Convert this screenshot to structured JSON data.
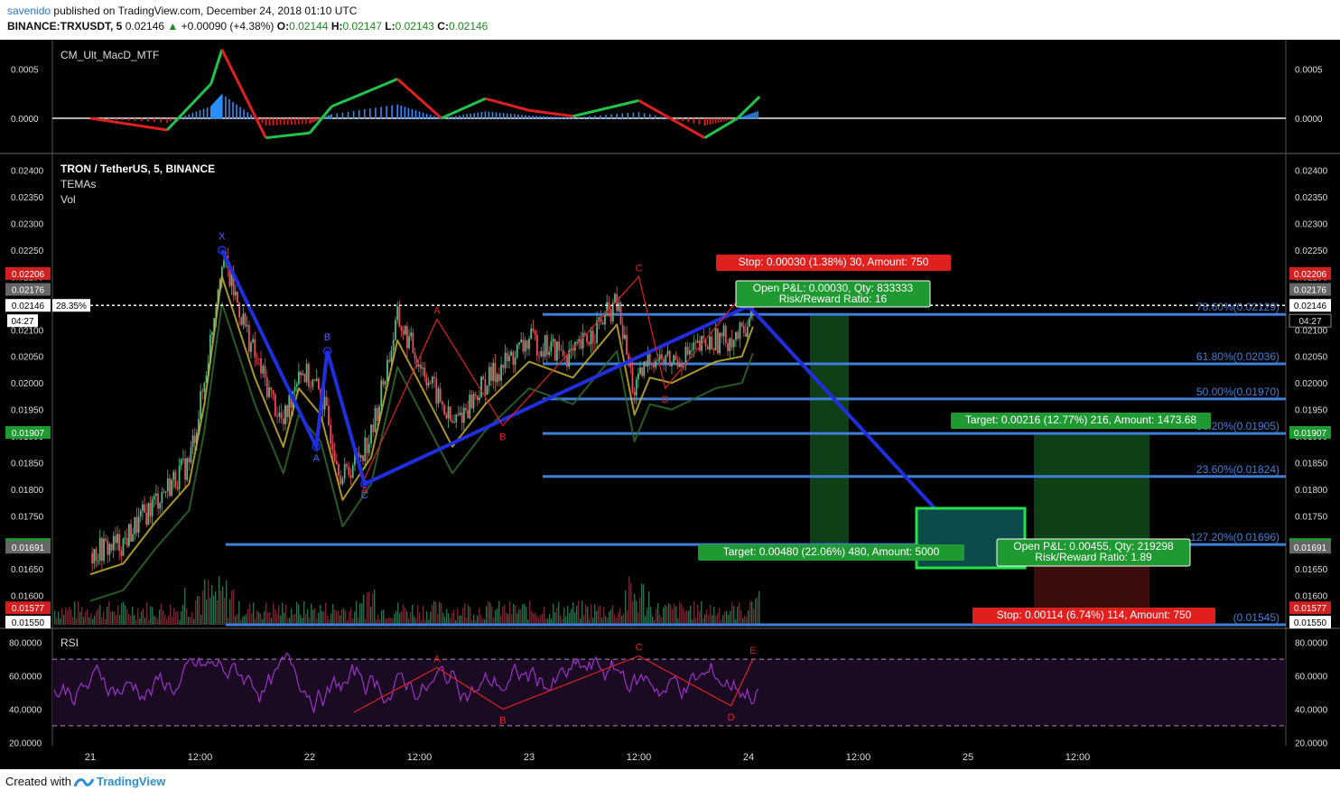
{
  "header": {
    "user": "savenido",
    "published": "published on TradingView.com, December 24, 2018 01:10 UTC",
    "symbol": "BINANCE:TRXUSDT, 5",
    "last": "0.02146",
    "change": "+0.00090 (+4.38%)",
    "o_label": "O:",
    "o": "0.02144",
    "h_label": "H:",
    "h": "0.02147",
    "l_label": "L:",
    "l": "0.02143",
    "c_label": "C:",
    "c": "0.02146"
  },
  "footer": {
    "created_with": "Created with",
    "brand": "TradingView"
  },
  "colors": {
    "background": "#000000",
    "candle_up": "#53b987",
    "candle_down": "#eb4d5c",
    "fib": "#3f7fd9",
    "pattern_blue": "#1f2fe0",
    "pattern_red": "#e02020",
    "rsi": "#9b30c8",
    "label_green": "#1f9a32",
    "label_red": "#e01f1f",
    "price_tag": "#d22020"
  },
  "chart_data": [
    {
      "type": "line",
      "panel": "macd",
      "title": "CM_Ult_MacD_MTF",
      "y_ticks": [
        "0.0005",
        "0.0000"
      ],
      "ylim": [
        -0.00035,
        0.0008
      ],
      "x_days": [
        0,
        0.35,
        0.55,
        0.6,
        0.8,
        1.0,
        1.1,
        1.4,
        1.6,
        1.8,
        2.0,
        2.2,
        2.5,
        2.8,
        2.95,
        3.05
      ],
      "values": [
        0.0,
        -0.00012,
        0.00035,
        0.0007,
        -0.0002,
        -0.00015,
        0.00012,
        0.0004,
        0.0,
        0.0002,
        8e-05,
        2e-05,
        0.00018,
        -0.0002,
        0.0,
        0.00022
      ]
    },
    {
      "type": "candlestick",
      "panel": "price",
      "title": "TRON / TetherUS, 5, BINANCE",
      "legend": [
        "TEMAs",
        "Vol"
      ],
      "x_labels": [
        "21",
        "12:00",
        "22",
        "12:00",
        "23",
        "12:00",
        "24",
        "12:00",
        "25",
        "12:00"
      ],
      "y_ticks": [
        "0.02400",
        "0.02350",
        "0.02300",
        "0.02250",
        "0.02200",
        "0.02150",
        "0.02100",
        "0.02050",
        "0.02000",
        "0.01950",
        "0.01900",
        "0.01850",
        "0.01800",
        "0.01750",
        "0.01700",
        "0.01650",
        "0.01600",
        "0.01550"
      ],
      "ylim": [
        0.0154,
        0.0243
      ],
      "price_path": {
        "x_days": [
          0,
          0.15,
          0.3,
          0.45,
          0.52,
          0.6,
          0.75,
          0.88,
          0.95,
          1.05,
          1.15,
          1.28,
          1.4,
          1.55,
          1.65,
          1.8,
          2.0,
          2.2,
          2.4,
          2.48,
          2.55,
          2.65,
          2.85,
          2.97,
          3.02
        ],
        "close": [
          0.0168,
          0.017,
          0.0178,
          0.0185,
          0.02,
          0.0224,
          0.0205,
          0.0192,
          0.0203,
          0.0198,
          0.0182,
          0.019,
          0.0212,
          0.02,
          0.0192,
          0.02,
          0.0208,
          0.0205,
          0.0215,
          0.0198,
          0.0205,
          0.0204,
          0.0208,
          0.0209,
          0.02146
        ]
      },
      "price_tags": [
        {
          "value": 0.02206,
          "label": "0.02206",
          "color": "#d22020"
        },
        {
          "value": 0.02176,
          "label": "0.02176",
          "color": "#666666"
        },
        {
          "value": 0.02146,
          "label": "0.02146",
          "color": "#ffffff",
          "text_color": "#000000"
        },
        {
          "value": 0.01907,
          "label": "0.01907",
          "color": "#1f9a32"
        },
        {
          "value": 0.01696,
          "label": "0.01696",
          "color": "#1f9a32"
        },
        {
          "value": 0.01691,
          "label": "0.01691",
          "color": "#666666"
        },
        {
          "value": 0.01577,
          "label": "0.01577",
          "color": "#d22020"
        },
        {
          "value": 0.0155,
          "label": "0.01550",
          "color": "#ffffff",
          "text_color": "#000000"
        }
      ],
      "left_markers": [
        {
          "value": 0.02146,
          "label": "28.35%"
        },
        {
          "value": 0.02125,
          "label": "04:27"
        }
      ],
      "right_countdown": "04:27",
      "fib_levels": [
        {
          "label": "78.60%(0.02129)",
          "value": 0.02129
        },
        {
          "label": "61.80%(0.02036)",
          "value": 0.02036
        },
        {
          "label": "50.00%(0.01970)",
          "value": 0.0197
        },
        {
          "label": "38.20%(0.01905)",
          "value": 0.01905
        },
        {
          "label": "23.60%(0.01824)",
          "value": 0.01824
        },
        {
          "label": "127.20%(0.01696)",
          "value": 0.01696
        },
        {
          "label": "(0.01545)",
          "value": 0.01545
        }
      ],
      "pattern_blue": {
        "points": [
          {
            "x": 0.6,
            "y": 0.0225,
            "label": "X"
          },
          {
            "x": 1.03,
            "y": 0.0188,
            "label": "A"
          },
          {
            "x": 1.08,
            "y": 0.0206,
            "label": "B"
          },
          {
            "x": 1.25,
            "y": 0.0181,
            "label": "C"
          },
          {
            "x": 3.0,
            "y": 0.02145,
            "label": ""
          },
          {
            "x": 4.0,
            "y": 0.01696,
            "label": ""
          }
        ]
      },
      "pattern_red": {
        "points": [
          {
            "x": 1.25,
            "y": 0.0182,
            "label": "A"
          },
          {
            "x": 1.58,
            "y": 0.0212,
            "label": "A"
          },
          {
            "x": 1.88,
            "y": 0.0192,
            "label": "B"
          },
          {
            "x": 2.5,
            "y": 0.022,
            "label": "C"
          },
          {
            "x": 2.62,
            "y": 0.0199,
            "label": "D"
          },
          {
            "x": 3.0,
            "y": 0.0218,
            "label": ""
          }
        ]
      },
      "annotations": {
        "stop_top": "Stop: 0.00030 (1.38%) 30, Amount: 750",
        "pnl_top_1": "Open P&L: 0.00030, Qty: 833333",
        "pnl_top_2": "Risk/Reward Ratio: 16",
        "target_right": "Target: 0.00216 (12.77%) 216, Amount: 1473.68",
        "target_left": "Target: 0.00480 (22.06%) 480, Amount: 5000",
        "pnl_bottom_1": "Open P&L: 0.00455, Qty: 219298",
        "pnl_bottom_2": "Risk/Reward Ratio: 1.89",
        "stop_bottom": "Stop: 0.00114 (6.74%) 114, Amount: 750"
      }
    },
    {
      "type": "line",
      "panel": "rsi",
      "title": "RSI",
      "y_ticks": [
        "80.0000",
        "60.0000",
        "40.0000",
        "20.0000"
      ],
      "ylim": [
        18,
        88
      ],
      "bands": [
        70,
        30
      ],
      "pattern_points": [
        {
          "x": 1.2,
          "y": 38,
          "label": ""
        },
        {
          "x": 1.58,
          "y": 65,
          "label": "A"
        },
        {
          "x": 1.88,
          "y": 40,
          "label": "B"
        },
        {
          "x": 2.5,
          "y": 72,
          "label": "C"
        },
        {
          "x": 2.92,
          "y": 42,
          "label": "D"
        },
        {
          "x": 3.02,
          "y": 70,
          "label": "E"
        }
      ]
    }
  ]
}
